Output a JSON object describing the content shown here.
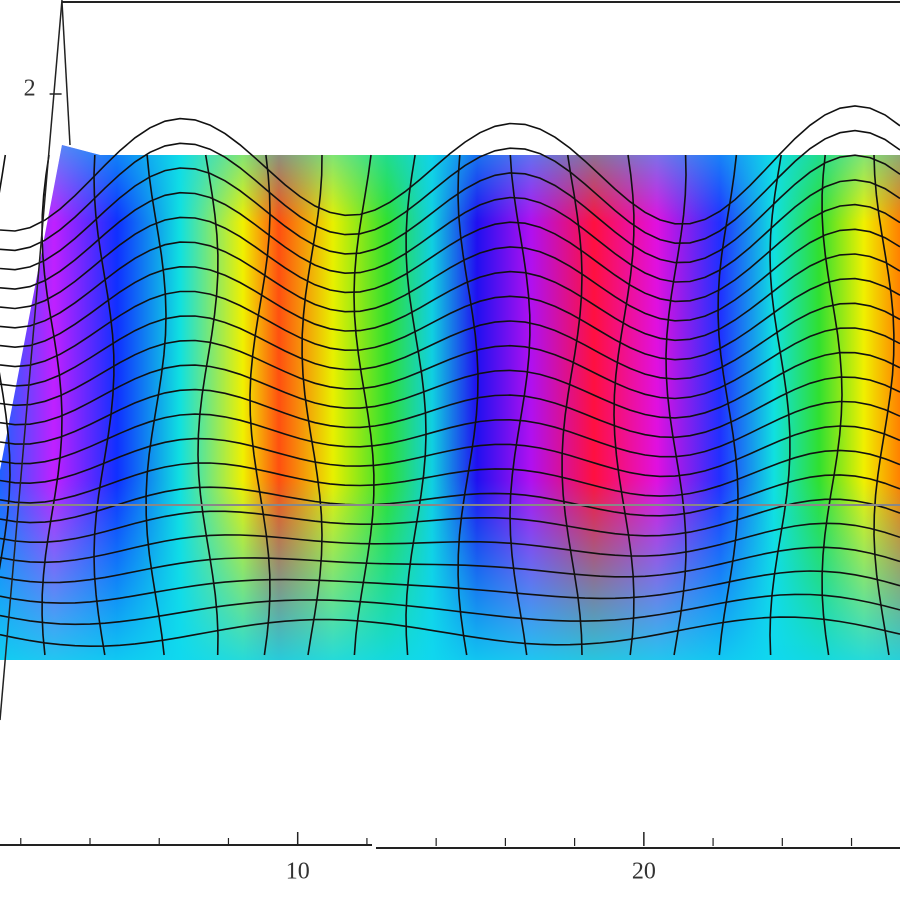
{
  "chart_data": {
    "type": "surface",
    "xlim": [
      1.4,
      27.4
    ],
    "xticks": [
      10,
      20
    ],
    "minor_xticks": [
      2,
      4,
      6,
      8,
      12,
      14,
      16,
      18,
      22,
      24,
      26
    ],
    "zlim": [
      0,
      2.5
    ],
    "zticks": [
      2
    ]
  }
}
